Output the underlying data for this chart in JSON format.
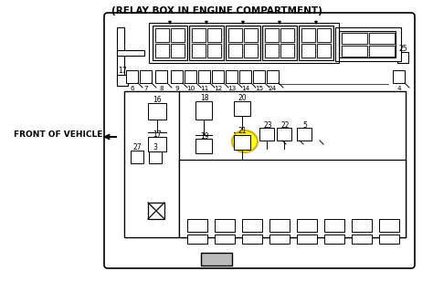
{
  "title": "(RELAY BOX IN ENGINE COMPARTMENT)",
  "title_fontsize": 7.5,
  "title_fontweight": "bold",
  "bg_color": "#ffffff",
  "front_label": "FRONT OF VEHICLE",
  "front_fontsize": 6.5,
  "front_fontweight": "bold",
  "highlight_color": "#ffff00",
  "highlight_edge": "#ccaa00"
}
